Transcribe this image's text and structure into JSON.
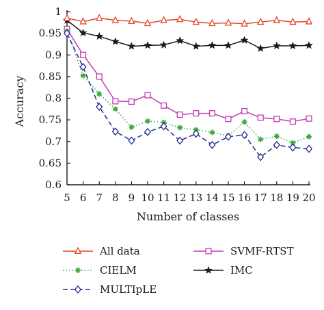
{
  "chart_data": {
    "type": "line",
    "xlabel": "Number of classes",
    "ylabel": "Accuracy",
    "x": [
      5,
      6,
      7,
      8,
      9,
      10,
      11,
      12,
      13,
      14,
      15,
      16,
      17,
      18,
      19,
      20
    ],
    "xlim": [
      5,
      20
    ],
    "ylim": [
      0.6,
      1.0
    ],
    "y_ticks": [
      "0.6",
      "0.65",
      "0.7",
      "0.75",
      "0.8",
      "0.85",
      "0.9",
      "0.95",
      "1"
    ],
    "x_ticks": [
      "5",
      "6",
      "7",
      "8",
      "9",
      "10",
      "11",
      "12",
      "13",
      "14",
      "15",
      "16",
      "17",
      "18",
      "19",
      "20"
    ],
    "grid": false,
    "legend_position": "bottom",
    "series": [
      {
        "name": "All data",
        "color": "#e8432b",
        "marker": "triangle",
        "dash": "solid",
        "values": [
          0.985,
          0.977,
          0.985,
          0.98,
          0.978,
          0.973,
          0.98,
          0.982,
          0.976,
          0.973,
          0.974,
          0.972,
          0.976,
          0.98,
          0.976,
          0.977
        ]
      },
      {
        "name": "SVMF-RTST",
        "color": "#c03cb0",
        "marker": "square",
        "dash": "solid",
        "values": [
          0.96,
          0.9,
          0.85,
          0.793,
          0.792,
          0.807,
          0.783,
          0.762,
          0.765,
          0.765,
          0.752,
          0.77,
          0.755,
          0.752,
          0.746,
          0.753
        ]
      },
      {
        "name": "CIELM",
        "color": "#3aa83a",
        "marker": "asterisk",
        "dash": "dotted",
        "values": [
          0.955,
          0.852,
          0.81,
          0.775,
          0.733,
          0.747,
          0.744,
          0.732,
          0.727,
          0.721,
          0.713,
          0.745,
          0.705,
          0.712,
          0.697,
          0.711
        ]
      },
      {
        "name": "IMC",
        "color": "#1a1a1a",
        "marker": "star",
        "dash": "solid",
        "values": [
          0.98,
          0.951,
          0.943,
          0.931,
          0.92,
          0.922,
          0.923,
          0.933,
          0.92,
          0.922,
          0.922,
          0.934,
          0.915,
          0.921,
          0.921,
          0.922
        ]
      },
      {
        "name": "MULTIpLE",
        "color": "#1f2a8c",
        "marker": "diamond",
        "dash": "dashed",
        "values": [
          0.95,
          0.872,
          0.78,
          0.723,
          0.702,
          0.722,
          0.735,
          0.702,
          0.718,
          0.692,
          0.711,
          0.715,
          0.664,
          0.692,
          0.686,
          0.683
        ]
      }
    ],
    "legend_order": [
      {
        "series": 0,
        "col": 0,
        "row": 0
      },
      {
        "series": 1,
        "col": 1,
        "row": 0
      },
      {
        "series": 2,
        "col": 0,
        "row": 1
      },
      {
        "series": 3,
        "col": 1,
        "row": 1
      },
      {
        "series": 4,
        "col": 0,
        "row": 2
      }
    ]
  }
}
